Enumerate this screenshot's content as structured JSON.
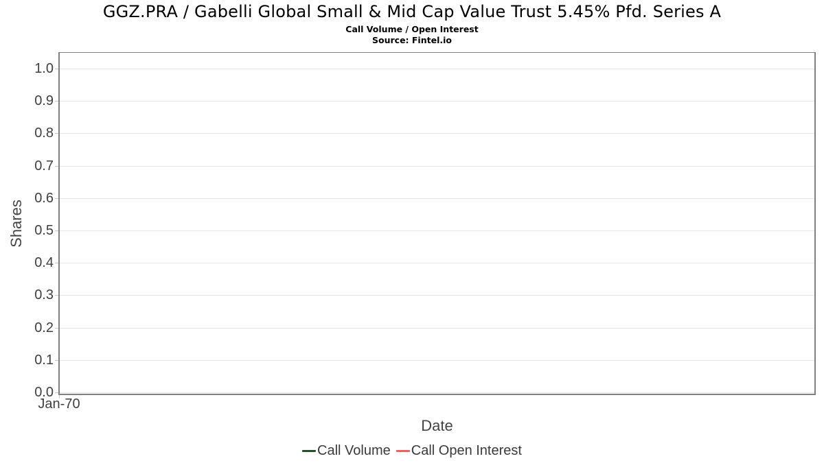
{
  "header": {
    "title": "GGZ.PRA / Gabelli Global Small & Mid Cap Value Trust 5.45% Pfd. Series A",
    "subtitle": "Call Volume / Open Interest",
    "source": "Source: Fintel.io"
  },
  "chart_data": {
    "type": "line",
    "title": "GGZ.PRA / Gabelli Global Small & Mid Cap Value Trust 5.45% Pfd. Series A",
    "subtitle": "Call Volume / Open Interest",
    "source": "Source: Fintel.io",
    "xlabel": "Date",
    "ylabel": "Shares",
    "ylim": [
      0.0,
      1.0
    ],
    "y_ticks": [
      "0.0",
      "0.1",
      "0.2",
      "0.3",
      "0.4",
      "0.5",
      "0.6",
      "0.7",
      "0.8",
      "0.9",
      "1.0"
    ],
    "x_ticks": [
      "Jan-70"
    ],
    "grid": "horizontal-only",
    "legend_position": "bottom-center",
    "plot_is_empty": true,
    "series": [
      {
        "name": "Call Volume",
        "color": "#264f2e",
        "x": [],
        "values": []
      },
      {
        "name": "Call Open Interest",
        "color": "#f25f5f",
        "x": [],
        "values": []
      }
    ]
  },
  "colors": {
    "plot_border": "#7f7f7f",
    "gridline": "#e7e7e7",
    "tick_mark": "#c8c8c8",
    "tick_label": "#3e3e3e",
    "axis_title": "#444444",
    "legend_text": "#3a3a3a",
    "title_text": "#000000"
  }
}
